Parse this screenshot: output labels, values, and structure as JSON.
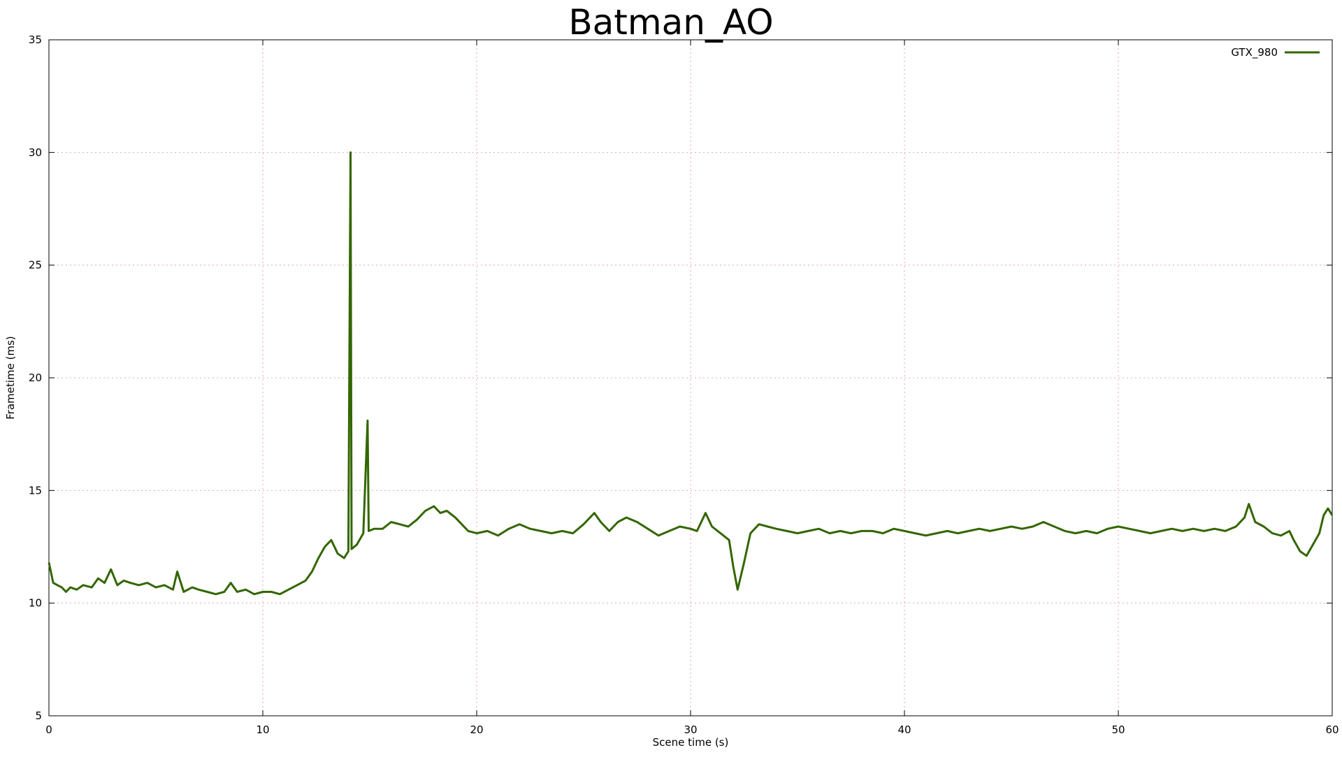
{
  "chart_data": {
    "type": "line",
    "title": "Batman_AO",
    "xlabel": "Scene time (s)",
    "ylabel": "Frametime (ms)",
    "xlim": [
      0,
      60
    ],
    "ylim": [
      5,
      35
    ],
    "xticks": [
      0,
      10,
      20,
      30,
      40,
      50,
      60
    ],
    "yticks": [
      5,
      10,
      15,
      20,
      25,
      30,
      35
    ],
    "grid": true,
    "legend_position": "top-right",
    "series": [
      {
        "name": "GTX_980",
        "color": "#336600",
        "points": [
          [
            0.0,
            11.8
          ],
          [
            0.2,
            10.9
          ],
          [
            0.4,
            10.8
          ],
          [
            0.6,
            10.7
          ],
          [
            0.8,
            10.5
          ],
          [
            1.0,
            10.7
          ],
          [
            1.3,
            10.6
          ],
          [
            1.6,
            10.8
          ],
          [
            2.0,
            10.7
          ],
          [
            2.3,
            11.1
          ],
          [
            2.6,
            10.9
          ],
          [
            2.9,
            11.5
          ],
          [
            3.2,
            10.8
          ],
          [
            3.5,
            11.0
          ],
          [
            3.8,
            10.9
          ],
          [
            4.2,
            10.8
          ],
          [
            4.6,
            10.9
          ],
          [
            5.0,
            10.7
          ],
          [
            5.4,
            10.8
          ],
          [
            5.8,
            10.6
          ],
          [
            6.0,
            11.4
          ],
          [
            6.3,
            10.5
          ],
          [
            6.7,
            10.7
          ],
          [
            7.0,
            10.6
          ],
          [
            7.4,
            10.5
          ],
          [
            7.8,
            10.4
          ],
          [
            8.2,
            10.5
          ],
          [
            8.5,
            10.9
          ],
          [
            8.8,
            10.5
          ],
          [
            9.2,
            10.6
          ],
          [
            9.6,
            10.4
          ],
          [
            10.0,
            10.5
          ],
          [
            10.4,
            10.5
          ],
          [
            10.8,
            10.4
          ],
          [
            11.2,
            10.6
          ],
          [
            11.6,
            10.8
          ],
          [
            12.0,
            11.0
          ],
          [
            12.3,
            11.4
          ],
          [
            12.6,
            12.0
          ],
          [
            12.9,
            12.5
          ],
          [
            13.2,
            12.8
          ],
          [
            13.5,
            12.2
          ],
          [
            13.8,
            12.0
          ],
          [
            14.0,
            12.3
          ],
          [
            14.1,
            30.0
          ],
          [
            14.15,
            12.4
          ],
          [
            14.4,
            12.6
          ],
          [
            14.7,
            13.1
          ],
          [
            14.9,
            18.1
          ],
          [
            14.95,
            13.2
          ],
          [
            15.2,
            13.3
          ],
          [
            15.6,
            13.3
          ],
          [
            16.0,
            13.6
          ],
          [
            16.4,
            13.5
          ],
          [
            16.8,
            13.4
          ],
          [
            17.2,
            13.7
          ],
          [
            17.6,
            14.1
          ],
          [
            18.0,
            14.3
          ],
          [
            18.3,
            14.0
          ],
          [
            18.6,
            14.1
          ],
          [
            19.0,
            13.8
          ],
          [
            19.3,
            13.5
          ],
          [
            19.6,
            13.2
          ],
          [
            20.0,
            13.1
          ],
          [
            20.5,
            13.2
          ],
          [
            21.0,
            13.0
          ],
          [
            21.5,
            13.3
          ],
          [
            22.0,
            13.5
          ],
          [
            22.5,
            13.3
          ],
          [
            23.0,
            13.2
          ],
          [
            23.5,
            13.1
          ],
          [
            24.0,
            13.2
          ],
          [
            24.5,
            13.1
          ],
          [
            25.0,
            13.5
          ],
          [
            25.5,
            14.0
          ],
          [
            25.8,
            13.6
          ],
          [
            26.2,
            13.2
          ],
          [
            26.6,
            13.6
          ],
          [
            27.0,
            13.8
          ],
          [
            27.5,
            13.6
          ],
          [
            28.0,
            13.3
          ],
          [
            28.5,
            13.0
          ],
          [
            29.0,
            13.2
          ],
          [
            29.5,
            13.4
          ],
          [
            30.0,
            13.3
          ],
          [
            30.3,
            13.2
          ],
          [
            30.7,
            14.0
          ],
          [
            31.0,
            13.4
          ],
          [
            31.4,
            13.1
          ],
          [
            31.8,
            12.8
          ],
          [
            32.0,
            11.6
          ],
          [
            32.2,
            10.6
          ],
          [
            32.5,
            11.8
          ],
          [
            32.8,
            13.1
          ],
          [
            33.2,
            13.5
          ],
          [
            33.6,
            13.4
          ],
          [
            34.0,
            13.3
          ],
          [
            34.5,
            13.2
          ],
          [
            35.0,
            13.1
          ],
          [
            35.5,
            13.2
          ],
          [
            36.0,
            13.3
          ],
          [
            36.5,
            13.1
          ],
          [
            37.0,
            13.2
          ],
          [
            37.5,
            13.1
          ],
          [
            38.0,
            13.2
          ],
          [
            38.5,
            13.2
          ],
          [
            39.0,
            13.1
          ],
          [
            39.5,
            13.3
          ],
          [
            40.0,
            13.2
          ],
          [
            40.5,
            13.1
          ],
          [
            41.0,
            13.0
          ],
          [
            41.5,
            13.1
          ],
          [
            42.0,
            13.2
          ],
          [
            42.5,
            13.1
          ],
          [
            43.0,
            13.2
          ],
          [
            43.5,
            13.3
          ],
          [
            44.0,
            13.2
          ],
          [
            44.5,
            13.3
          ],
          [
            45.0,
            13.4
          ],
          [
            45.5,
            13.3
          ],
          [
            46.0,
            13.4
          ],
          [
            46.5,
            13.6
          ],
          [
            47.0,
            13.4
          ],
          [
            47.5,
            13.2
          ],
          [
            48.0,
            13.1
          ],
          [
            48.5,
            13.2
          ],
          [
            49.0,
            13.1
          ],
          [
            49.5,
            13.3
          ],
          [
            50.0,
            13.4
          ],
          [
            50.5,
            13.3
          ],
          [
            51.0,
            13.2
          ],
          [
            51.5,
            13.1
          ],
          [
            52.0,
            13.2
          ],
          [
            52.5,
            13.3
          ],
          [
            53.0,
            13.2
          ],
          [
            53.5,
            13.3
          ],
          [
            54.0,
            13.2
          ],
          [
            54.5,
            13.3
          ],
          [
            55.0,
            13.2
          ],
          [
            55.5,
            13.4
          ],
          [
            55.9,
            13.8
          ],
          [
            56.1,
            14.4
          ],
          [
            56.4,
            13.6
          ],
          [
            56.8,
            13.4
          ],
          [
            57.2,
            13.1
          ],
          [
            57.6,
            13.0
          ],
          [
            58.0,
            13.2
          ],
          [
            58.2,
            12.8
          ],
          [
            58.5,
            12.3
          ],
          [
            58.8,
            12.1
          ],
          [
            59.1,
            12.6
          ],
          [
            59.4,
            13.1
          ],
          [
            59.6,
            13.9
          ],
          [
            59.8,
            14.2
          ],
          [
            60.0,
            13.9
          ]
        ]
      }
    ]
  }
}
